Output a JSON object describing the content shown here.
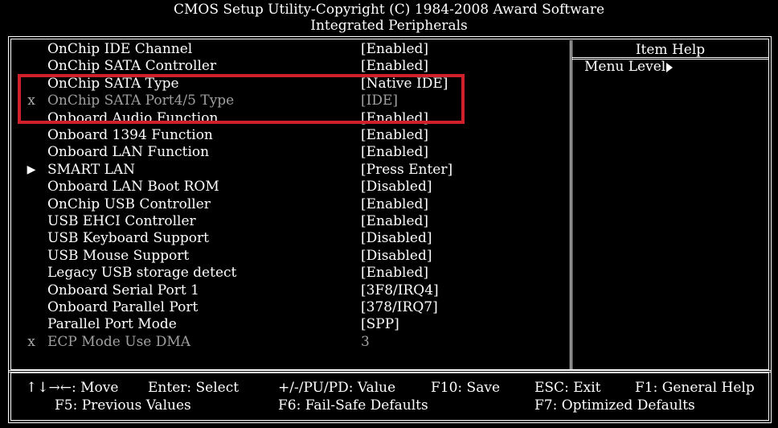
{
  "header": {
    "title": "CMOS Setup Utility-Copyright (C) 1984-2008 Award Software",
    "subtitle": "Integrated Peripherals"
  },
  "settings": [
    {
      "mark": "",
      "label": "OnChip IDE Channel",
      "value": "[Enabled]"
    },
    {
      "mark": "",
      "label": "OnChip SATA Controller",
      "value": "[Enabled]"
    },
    {
      "mark": "",
      "label": "OnChip SATA Type",
      "value": "[Native IDE]"
    },
    {
      "mark": "x",
      "label": "OnChip SATA Port4/5 Type",
      "value": "[IDE]"
    },
    {
      "mark": "",
      "label": "Onboard Audio Function",
      "value": "[Enabled]"
    },
    {
      "mark": "",
      "label": "Onboard 1394 Function",
      "value": "[Enabled]"
    },
    {
      "mark": "",
      "label": "Onboard LAN Function",
      "value": "[Enabled]"
    },
    {
      "mark": "▶",
      "label": "SMART LAN",
      "value": "[Press Enter]"
    },
    {
      "mark": "",
      "label": "Onboard LAN Boot ROM",
      "value": "[Disabled]"
    },
    {
      "mark": "",
      "label": "OnChip USB Controller",
      "value": "[Enabled]"
    },
    {
      "mark": "",
      "label": "USB EHCI Controller",
      "value": "[Enabled]"
    },
    {
      "mark": "",
      "label": "USB Keyboard Support",
      "value": "[Disabled]"
    },
    {
      "mark": "",
      "label": "USB Mouse Support",
      "value": "[Disabled]"
    },
    {
      "mark": "",
      "label": "Legacy USB storage detect",
      "value": "[Enabled]"
    },
    {
      "mark": "",
      "label": "Onboard Serial Port 1",
      "value": "[3F8/IRQ4]"
    },
    {
      "mark": "",
      "label": "Onboard Parallel Port",
      "value": "[378/IRQ7]"
    },
    {
      "mark": "",
      "label": "Parallel Port Mode",
      "value": "[SPP]"
    },
    {
      "mark": "x",
      "label": "ECP Mode Use DMA",
      "value": "3"
    }
  ],
  "help": {
    "title": "Item Help",
    "menu_level": "Menu Level"
  },
  "footer": {
    "move": "↑↓→←: Move",
    "select": "Enter: Select",
    "value": "+/-/PU/PD: Value",
    "save": "F10: Save",
    "exit": "ESC: Exit",
    "general_help": "F1: General Help",
    "previous": "F5: Previous Values",
    "failsafe": "F6: Fail-Safe Defaults",
    "optimized": "F7: Optimized Defaults"
  },
  "colors": {
    "background": "#000000",
    "text": "#ffffff",
    "disabled_text": "#a0a0a0",
    "highlight_box": "#d0212b"
  }
}
